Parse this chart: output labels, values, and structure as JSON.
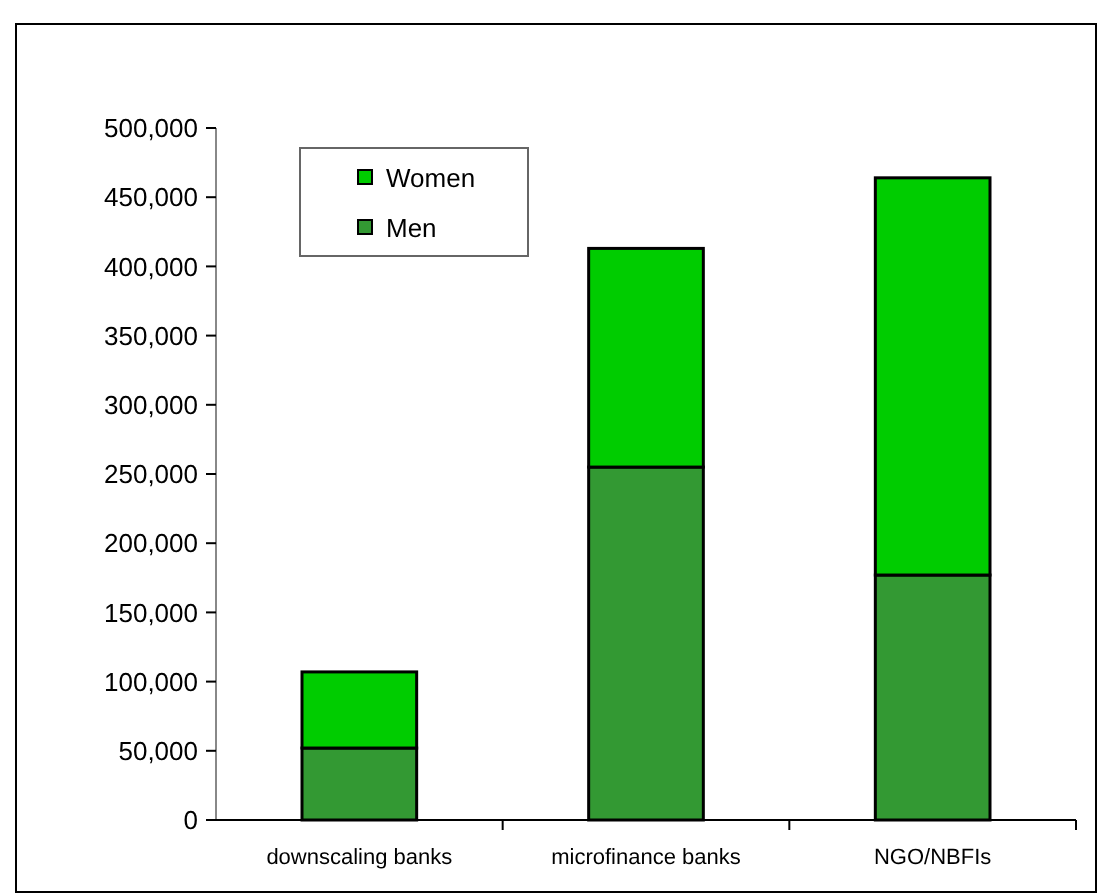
{
  "chart_data": {
    "type": "bar",
    "stacked": true,
    "categories": [
      "downscaling banks",
      "microfinance banks",
      "NGO/NBFIs"
    ],
    "series": [
      {
        "name": "Men",
        "color": "#339933",
        "values": [
          52000,
          255000,
          177000
        ]
      },
      {
        "name": "Women",
        "color": "#00cc00",
        "values": [
          55000,
          158000,
          287000
        ]
      }
    ],
    "ylim": [
      0,
      500000
    ],
    "yticks": [
      {
        "value": 0,
        "label": "0"
      },
      {
        "value": 50000,
        "label": "50,000"
      },
      {
        "value": 100000,
        "label": "100,000"
      },
      {
        "value": 150000,
        "label": "150,000"
      },
      {
        "value": 200000,
        "label": "200,000"
      },
      {
        "value": 250000,
        "label": "250,000"
      },
      {
        "value": 300000,
        "label": "300,000"
      },
      {
        "value": 350000,
        "label": "350,000"
      },
      {
        "value": 400000,
        "label": "400,000"
      },
      {
        "value": 450000,
        "label": "450,000"
      },
      {
        "value": 500000,
        "label": "500,000"
      }
    ],
    "grid": false,
    "legend": "top left"
  }
}
